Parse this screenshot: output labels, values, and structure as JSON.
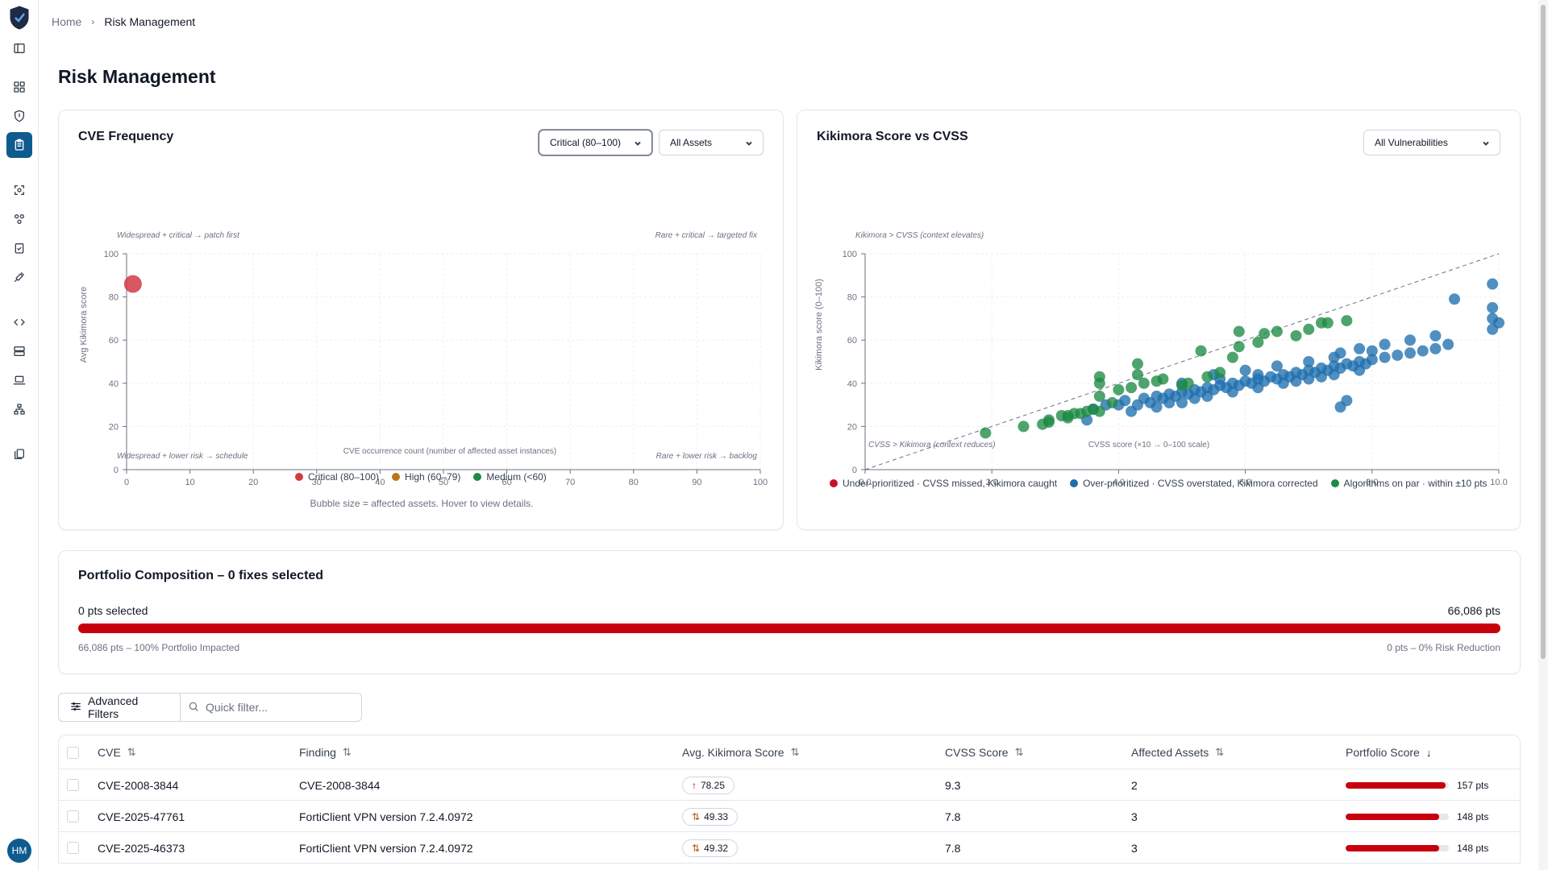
{
  "breadcrumb": {
    "home": "Home",
    "current": "Risk Management"
  },
  "page_title": "Risk Management",
  "cve_frequency": {
    "title": "CVE Frequency",
    "severity_filter": "Critical (80–100)",
    "asset_filter": "All Assets",
    "quadrants": {
      "top_left": "Widespread + critical → patch first",
      "top_right": "Rare + critical → targeted fix",
      "bottom_left": "Widespread + lower risk → schedule",
      "bottom_right": "Rare + lower risk → backlog"
    },
    "legend": [
      "Critical (80–100)",
      "High (60–79)",
      "Medium (<60)"
    ],
    "caption": "Bubble size = affected assets. Hover to view details.",
    "colors": {
      "critical": "#d13a44",
      "high": "#b8761a",
      "medium": "#1e8a45"
    }
  },
  "kvc": {
    "title": "Kikimora Score vs CVSS",
    "filter": "All Vulnerabilities",
    "annot_top": "Kikimora > CVSS (context elevates)",
    "annot_bottom": "CVSS > Kikimora (context reduces)",
    "legend": [
      "Under-prioritized · CVSS missed, Kikimora caught",
      "Over-prioritized · CVSS overstated, Kikimora corrected",
      "Algorithms on par · within ±10 pts"
    ],
    "colors": {
      "under": "#c8102e",
      "over": "#1f6fae",
      "par": "#1e8a45"
    }
  },
  "chart_data": [
    {
      "type": "scatter",
      "title": "CVE Frequency",
      "xlabel": "CVE occurrence count (number of affected asset instances)",
      "ylabel": "Avg Kikimora score",
      "xlim": [
        0,
        100
      ],
      "ylim": [
        0,
        100
      ],
      "xticks": [
        0,
        10,
        20,
        30,
        40,
        50,
        60,
        70,
        80,
        90,
        100
      ],
      "yticks": [
        0,
        20,
        40,
        60,
        80,
        100
      ],
      "grid": true,
      "legend_position": "bottom",
      "series": [
        {
          "name": "Critical (80–100)",
          "points": [
            {
              "x": 1,
              "y": 86
            }
          ]
        },
        {
          "name": "High (60–79)",
          "points": []
        },
        {
          "name": "Medium (<60)",
          "points": []
        }
      ]
    },
    {
      "type": "scatter",
      "title": "Kikimora Score vs CVSS",
      "xlabel": "CVSS score (×10 → 0–100 scale)",
      "ylabel": "Kikimora score (0–100)",
      "xlim": [
        0,
        10
      ],
      "ylim": [
        0,
        100
      ],
      "xticks": [
        "0.0",
        "2.0",
        "4.0",
        "6.0",
        "8.0",
        "10.0"
      ],
      "yticks": [
        0,
        20,
        40,
        60,
        80,
        100
      ],
      "grid": true,
      "legend_position": "bottom",
      "reference_line": "y = 10x",
      "series": [
        {
          "name": "Under-prioritized · CVSS missed, Kikimora caught",
          "points": []
        },
        {
          "name": "Over-prioritized · CVSS overstated, Kikimora corrected",
          "points": [
            [
              3.6,
              28
            ],
            [
              3.8,
              30
            ],
            [
              4.0,
              30
            ],
            [
              4.1,
              32
            ],
            [
              4.3,
              30
            ],
            [
              4.4,
              33
            ],
            [
              4.5,
              31
            ],
            [
              4.6,
              34
            ],
            [
              4.7,
              33
            ],
            [
              4.8,
              35
            ],
            [
              4.9,
              34
            ],
            [
              5.0,
              36
            ],
            [
              5.1,
              35
            ],
            [
              5.2,
              37
            ],
            [
              5.3,
              36
            ],
            [
              5.4,
              38
            ],
            [
              5.5,
              37
            ],
            [
              5.6,
              39
            ],
            [
              5.7,
              38
            ],
            [
              5.8,
              40
            ],
            [
              5.9,
              39
            ],
            [
              6.0,
              41
            ],
            [
              6.1,
              40
            ],
            [
              6.2,
              42
            ],
            [
              6.3,
              41
            ],
            [
              6.4,
              43
            ],
            [
              6.5,
              42
            ],
            [
              6.6,
              44
            ],
            [
              6.7,
              43
            ],
            [
              6.8,
              45
            ],
            [
              6.9,
              44
            ],
            [
              7.0,
              46
            ],
            [
              7.1,
              45
            ],
            [
              7.2,
              47
            ],
            [
              7.3,
              46
            ],
            [
              7.4,
              48
            ],
            [
              7.5,
              47
            ],
            [
              7.6,
              49
            ],
            [
              7.7,
              48
            ],
            [
              7.8,
              50
            ],
            [
              7.9,
              49
            ],
            [
              8.0,
              51
            ],
            [
              8.2,
              52
            ],
            [
              8.4,
              53
            ],
            [
              8.6,
              54
            ],
            [
              8.8,
              55
            ],
            [
              9.0,
              56
            ],
            [
              9.2,
              58
            ],
            [
              3.5,
              23
            ],
            [
              4.2,
              27
            ],
            [
              4.6,
              29
            ],
            [
              5.0,
              31
            ],
            [
              5.4,
              34
            ],
            [
              5.8,
              36
            ],
            [
              6.2,
              38
            ],
            [
              6.6,
              40
            ],
            [
              7.0,
              42
            ],
            [
              7.4,
              44
            ],
            [
              7.8,
              46
            ],
            [
              5.0,
              40
            ],
            [
              5.5,
              44
            ],
            [
              6.0,
              46
            ],
            [
              6.5,
              48
            ],
            [
              7.0,
              50
            ],
            [
              7.5,
              54
            ],
            [
              7.8,
              56
            ],
            [
              8.2,
              58
            ],
            [
              8.6,
              60
            ],
            [
              9.0,
              62
            ],
            [
              9.3,
              79
            ],
            [
              9.9,
              86
            ],
            [
              9.9,
              75
            ],
            [
              9.9,
              70
            ],
            [
              10.0,
              68
            ],
            [
              9.9,
              65
            ],
            [
              7.5,
              29
            ],
            [
              7.6,
              32
            ],
            [
              7.2,
              43
            ],
            [
              6.8,
              41
            ],
            [
              5.2,
              33
            ],
            [
              4.8,
              31
            ],
            [
              8.0,
              55
            ],
            [
              7.4,
              52
            ],
            [
              6.2,
              44
            ],
            [
              5.6,
              42
            ]
          ]
        },
        {
          "name": "Algorithms on par · within ±10 pts",
          "points": [
            [
              1.9,
              17
            ],
            [
              2.5,
              20
            ],
            [
              2.8,
              21
            ],
            [
              2.9,
              22
            ],
            [
              3.1,
              25
            ],
            [
              3.2,
              25
            ],
            [
              3.3,
              26
            ],
            [
              3.4,
              26
            ],
            [
              3.5,
              27
            ],
            [
              3.6,
              28
            ],
            [
              3.7,
              27
            ],
            [
              3.9,
              31
            ],
            [
              4.0,
              37
            ],
            [
              4.2,
              38
            ],
            [
              4.3,
              44
            ],
            [
              4.3,
              49
            ],
            [
              4.4,
              40
            ],
            [
              4.6,
              41
            ],
            [
              4.7,
              42
            ],
            [
              5.0,
              39
            ],
            [
              5.1,
              40
            ],
            [
              5.3,
              55
            ],
            [
              5.4,
              43
            ],
            [
              5.6,
              45
            ],
            [
              5.8,
              52
            ],
            [
              5.9,
              57
            ],
            [
              5.9,
              64
            ],
            [
              6.2,
              59
            ],
            [
              6.3,
              63
            ],
            [
              6.5,
              64
            ],
            [
              6.8,
              62
            ],
            [
              7.0,
              65
            ],
            [
              7.2,
              68
            ],
            [
              7.3,
              68
            ],
            [
              7.6,
              69
            ],
            [
              3.7,
              43
            ],
            [
              3.7,
              40
            ],
            [
              3.7,
              34
            ],
            [
              3.2,
              24
            ],
            [
              2.9,
              23
            ]
          ]
        }
      ]
    }
  ],
  "portfolio": {
    "title": "Portfolio Composition – 0 fixes selected",
    "selected_label": "0 pts selected",
    "total_label": "66,086 pts",
    "impacted": "66,086 pts – 100% Portfolio Impacted",
    "reduction": "0 pts – 0% Risk Reduction",
    "impacted_fraction": 1.0
  },
  "filters": {
    "advanced": "Advanced Filters",
    "quick_placeholder": "Quick filter..."
  },
  "table": {
    "columns": [
      "CVE",
      "Finding",
      "Avg. Kikimora Score",
      "CVSS Score",
      "Affected Assets",
      "Portfolio Score"
    ],
    "rows": [
      {
        "cve": "CVE-2008-3844",
        "finding": "CVE-2008-3844",
        "kikimora": "78.25",
        "trend": "↑",
        "cvss": "9.3",
        "assets": "2",
        "portfolio": "157 pts",
        "portfolio_value": 157
      },
      {
        "cve": "CVE-2025-47761",
        "finding": "FortiClient VPN version 7.2.4.0972",
        "kikimora": "49.33",
        "trend": "⇅",
        "cvss": "7.8",
        "assets": "3",
        "portfolio": "148 pts",
        "portfolio_value": 148
      },
      {
        "cve": "CVE-2025-46373",
        "finding": "FortiClient VPN version 7.2.4.0972",
        "kikimora": "49.32",
        "trend": "⇅",
        "cvss": "7.8",
        "assets": "3",
        "portfolio": "148 pts",
        "portfolio_value": 148
      }
    ],
    "portfolio_max": 162
  },
  "user": {
    "initials": "HM"
  }
}
